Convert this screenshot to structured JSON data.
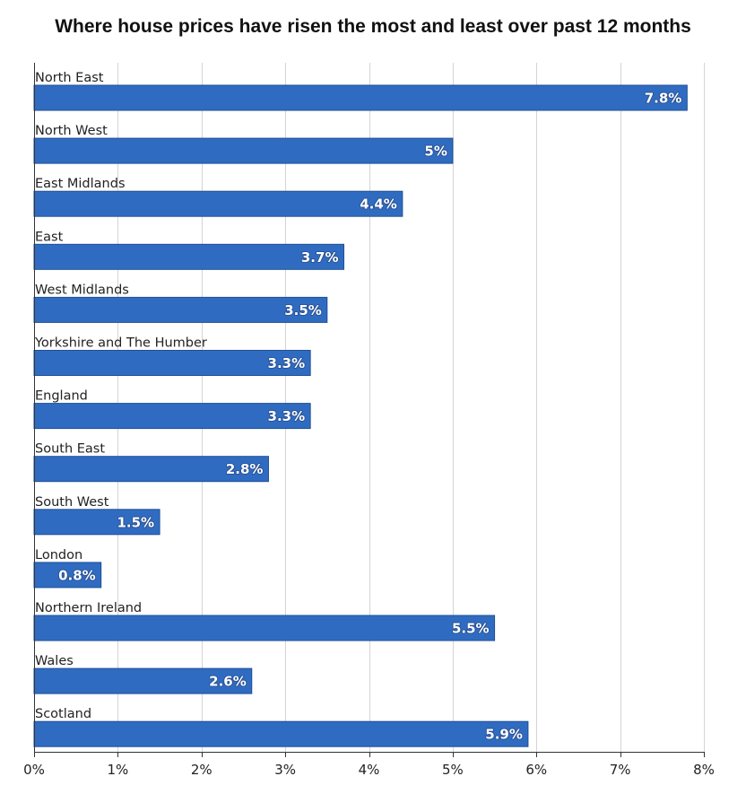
{
  "chart_data": {
    "type": "bar",
    "orientation": "horizontal",
    "title": "Where house prices have risen the most and least over past 12 months",
    "categories": [
      "North East",
      "North West",
      "East Midlands",
      "East",
      "West Midlands",
      "Yorkshire and The Humber",
      "England",
      "South East",
      "South West",
      "London",
      "Northern Ireland",
      "Wales",
      "Scotland"
    ],
    "values": [
      7.8,
      5,
      4.4,
      3.7,
      3.5,
      3.3,
      3.3,
      2.8,
      1.5,
      0.8,
      5.5,
      2.6,
      5.9
    ],
    "value_labels": [
      "7.8%",
      "5%",
      "4.4%",
      "3.7%",
      "3.5%",
      "3.3%",
      "3.3%",
      "2.8%",
      "1.5%",
      "0.8%",
      "5.5%",
      "2.6%",
      "5.9%"
    ],
    "xlim": [
      0,
      8
    ],
    "x_ticks": [
      0,
      1,
      2,
      3,
      4,
      5,
      6,
      7,
      8
    ],
    "x_tick_labels": [
      "0%",
      "1%",
      "2%",
      "3%",
      "4%",
      "5%",
      "6%",
      "7%",
      "8%"
    ],
    "grid": true,
    "bar_color": "#2f6cc1",
    "bar_border_color": "#1f4f94"
  }
}
